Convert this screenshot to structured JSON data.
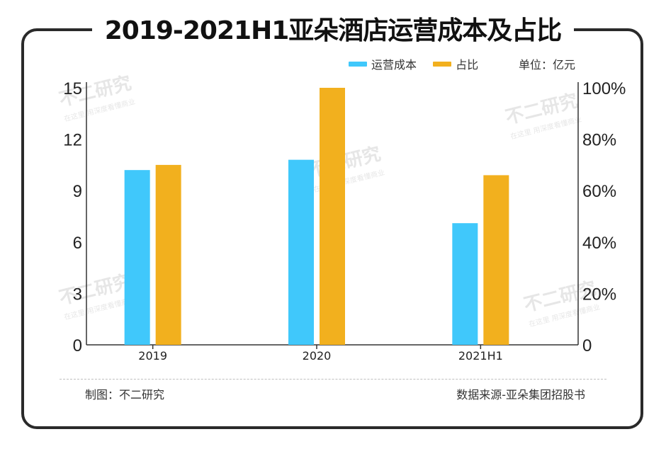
{
  "title": "2019-2021H1亚朵酒店运营成本及占比",
  "unit_label": "单位：亿元",
  "credit": "制图：不二研究",
  "source": "数据来源-亚朵集团招股书",
  "watermark": {
    "main": "不二研究",
    "sub": "在这里 用深度看懂商业"
  },
  "colors": {
    "cost": "#40c8fb",
    "ratio": "#f2b01e",
    "axis": "#333333"
  },
  "chart_data": {
    "type": "bar",
    "title": "2019-2021H1亚朵酒店运营成本及占比",
    "categories": [
      "2019",
      "2020",
      "2021H1"
    ],
    "series": [
      {
        "name": "运营成本",
        "axis": "left",
        "values": [
          10.2,
          10.8,
          7.1
        ]
      },
      {
        "name": "占比",
        "axis": "right",
        "values": [
          70,
          100,
          66
        ]
      }
    ],
    "y_left": {
      "min": 0,
      "max": 15,
      "ticks": [
        0,
        3,
        6,
        9,
        12,
        15
      ],
      "tick_labels": [
        "0",
        "3",
        "6",
        "9",
        "12",
        "15"
      ]
    },
    "y_right": {
      "min": 0,
      "max": 100,
      "ticks": [
        0,
        20,
        40,
        60,
        80,
        100
      ],
      "tick_labels": [
        "0",
        "20%",
        "40%",
        "60%",
        "80%",
        "100%"
      ]
    },
    "grid": false,
    "legend_position": "top-right"
  }
}
